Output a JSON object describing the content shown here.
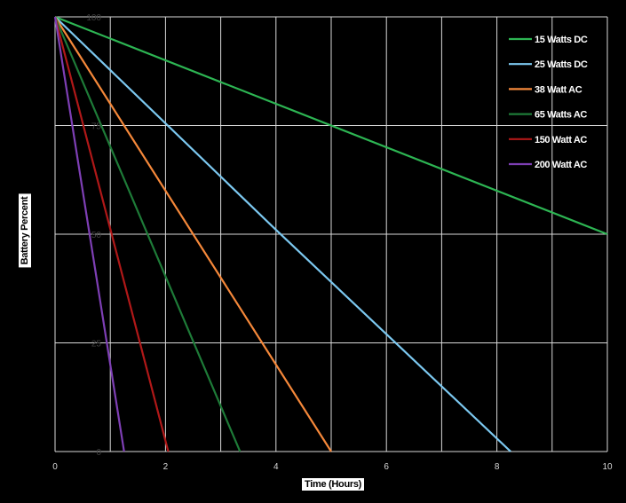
{
  "chart_data": {
    "type": "line",
    "xlabel": "Time (Hours)",
    "ylabel": "Battery Percent",
    "xlim": [
      0,
      10
    ],
    "ylim": [
      0,
      100
    ],
    "xticks": [
      "0",
      "2",
      "4",
      "6",
      "8",
      "10"
    ],
    "yticks": [
      "0",
      "25",
      "50",
      "75",
      "100"
    ],
    "x_gridlines": [
      0,
      1,
      2,
      3,
      4,
      5,
      6,
      7,
      8,
      9,
      10
    ],
    "grid": true,
    "legend_position": "top-right",
    "series": [
      {
        "name": "15 Watts DC",
        "color": "#2db553",
        "points": [
          [
            0,
            100
          ],
          [
            10,
            50
          ]
        ]
      },
      {
        "name": "25 Watts DC",
        "color": "#7cc8f0",
        "points": [
          [
            0,
            100
          ],
          [
            4,
            51
          ],
          [
            8.25,
            0
          ]
        ]
      },
      {
        "name": "38 Watt AC",
        "color": "#f5883a",
        "points": [
          [
            0,
            100
          ],
          [
            5,
            0
          ]
        ]
      },
      {
        "name": "65 Watts AC",
        "color": "#1e7b38",
        "points": [
          [
            0,
            100
          ],
          [
            3.35,
            0
          ]
        ]
      },
      {
        "name": "150 Watt AC",
        "color": "#b01818",
        "points": [
          [
            0,
            100
          ],
          [
            2.05,
            0
          ]
        ]
      },
      {
        "name": "200 Watt AC",
        "color": "#7e3fb5",
        "points": [
          [
            0,
            100
          ],
          [
            1.25,
            0
          ]
        ]
      }
    ]
  }
}
